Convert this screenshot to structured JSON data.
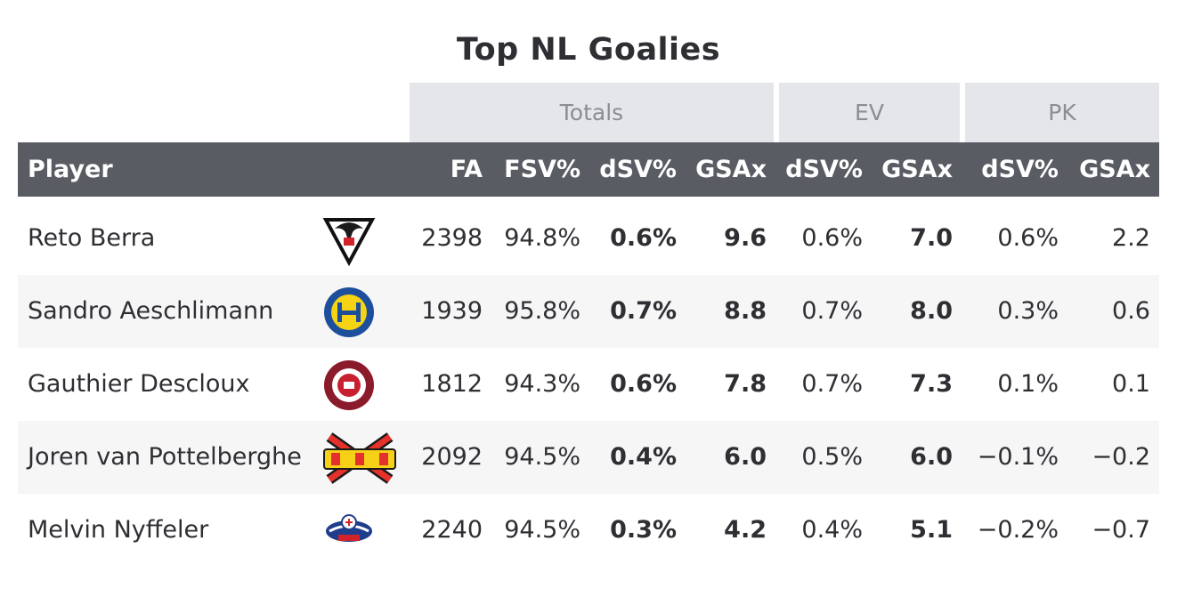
{
  "title": "Top NL Goalies",
  "groups": {
    "totals": "Totals",
    "ev": "EV",
    "pk": "PK"
  },
  "columns": {
    "player": "Player",
    "fa": "FA",
    "fsv": "FSV%",
    "dsv": "dSV%",
    "gsax": "GSAx",
    "ev_dsv": "dSV%",
    "ev_gsax": "GSAx",
    "pk_dsv": "dSV%",
    "pk_gsax": "GSAx"
  },
  "rows": [
    {
      "player": "Reto Berra",
      "logo": "fribourg-gotteron-logo",
      "fa": "2398",
      "fsv": "94.8%",
      "dsv": "0.6%",
      "gsax": "9.6",
      "ev_dsv": "0.6%",
      "ev_gsax": "7.0",
      "pk_dsv": "0.6%",
      "pk_gsax": "2.2"
    },
    {
      "player": "Sandro Aeschlimann",
      "logo": "hc-davos-logo",
      "fa": "1939",
      "fsv": "95.8%",
      "dsv": "0.7%",
      "gsax": "8.8",
      "ev_dsv": "0.7%",
      "ev_gsax": "8.0",
      "pk_dsv": "0.3%",
      "pk_gsax": "0.6"
    },
    {
      "player": "Gauthier Descloux",
      "logo": "geneve-servette-logo",
      "fa": "1812",
      "fsv": "94.3%",
      "dsv": "0.6%",
      "gsax": "7.8",
      "ev_dsv": "0.7%",
      "ev_gsax": "7.3",
      "pk_dsv": "0.1%",
      "pk_gsax": "0.1"
    },
    {
      "player": "Joren van Pottelberghe",
      "logo": "ehc-biel-logo",
      "fa": "2092",
      "fsv": "94.5%",
      "dsv": "0.4%",
      "gsax": "6.0",
      "ev_dsv": "0.5%",
      "ev_gsax": "6.0",
      "pk_dsv": "−0.1%",
      "pk_gsax": "−0.2"
    },
    {
      "player": "Melvin Nyffeler",
      "logo": "sc-rapperswil-jona-lakers-logo",
      "fa": "2240",
      "fsv": "94.5%",
      "dsv": "0.3%",
      "gsax": "4.2",
      "ev_dsv": "0.4%",
      "ev_gsax": "5.1",
      "pk_dsv": "−0.2%",
      "pk_gsax": "−0.7"
    }
  ],
  "colors": {
    "header_bg": "#595d63",
    "group_bg": "#e4e6ea",
    "stripe": "#f6f6f7"
  }
}
